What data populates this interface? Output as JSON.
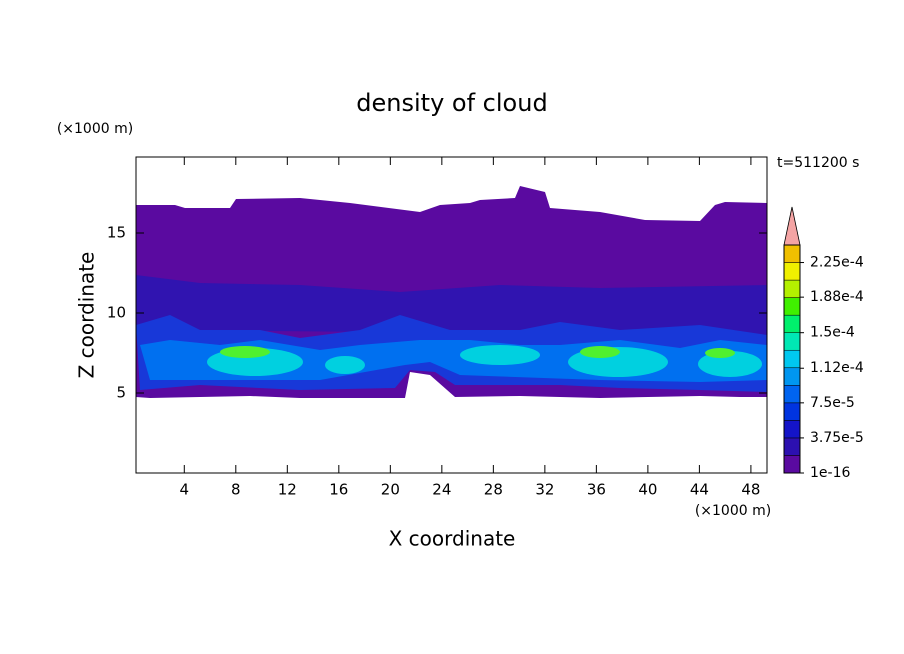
{
  "chart_data": {
    "type": "contour",
    "title": "density of cloud",
    "xlabel": "X coordinate",
    "ylabel": "Z coordinate",
    "x_unit": "(×1000 m)",
    "y_unit": "(×1000 m)",
    "annotation": "t=511200 s",
    "xlim": [
      0.25,
      49.25
    ],
    "ylim": [
      0,
      19.75
    ],
    "xticks": [
      4,
      8,
      12,
      16,
      20,
      24,
      28,
      32,
      36,
      40,
      44,
      48
    ],
    "yticks": [
      5,
      10,
      15
    ],
    "grid": false,
    "colorbar": {
      "colors": [
        "#5a0aa0",
        "#2c10b0",
        "#1414c8",
        "#0034e0",
        "#0064f0",
        "#0096f0",
        "#00c8f0",
        "#00e8b4",
        "#00f06c",
        "#40f000",
        "#b4f000",
        "#f0f000",
        "#f0c000",
        "#f09000",
        "#f05000",
        "#f00000"
      ],
      "extend_color": "#f4a4a4",
      "clim": [
        0,
        0.0003
      ],
      "ticks": [
        1e-16,
        {
          "value": 3.75e-05,
          "label": "3.75e-5"
        },
        {
          "value": 7.5e-05,
          "label": "7.5e-5"
        },
        {
          "value": 0.000112,
          "label": "1.12e-4"
        },
        {
          "value": 0.00015,
          "label": "1.5e-4"
        },
        {
          "value": 0.000188,
          "label": "1.88e-4"
        },
        {
          "value": 0.000225,
          "label": "2.25e-4"
        }
      ]
    }
  }
}
